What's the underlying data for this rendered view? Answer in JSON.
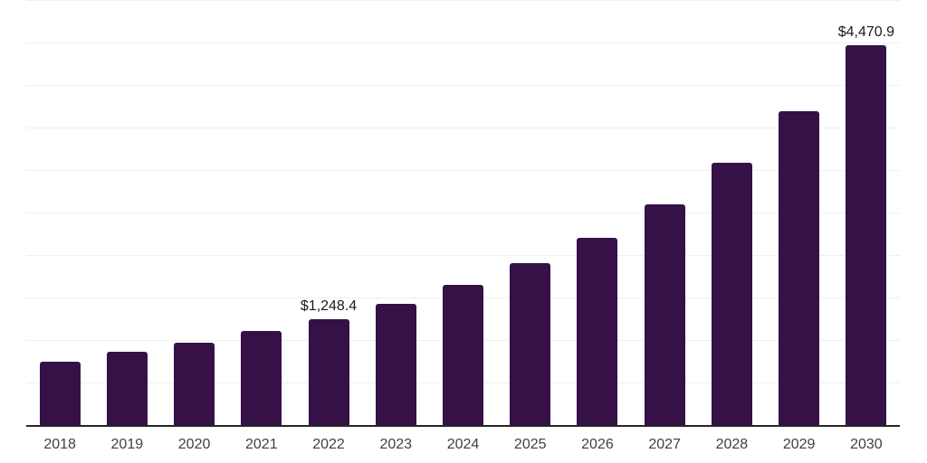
{
  "chart_data": {
    "type": "bar",
    "title": "",
    "xlabel": "",
    "ylabel": "",
    "categories": [
      "2018",
      "2019",
      "2020",
      "2021",
      "2022",
      "2023",
      "2024",
      "2025",
      "2026",
      "2027",
      "2028",
      "2029",
      "2030"
    ],
    "values": [
      745.0,
      860.0,
      970.0,
      1110.0,
      1248.4,
      1430.0,
      1645.0,
      1900.0,
      2200.0,
      2595.0,
      3080.0,
      3690.0,
      4470.9
    ],
    "value_labels": [
      "",
      "",
      "",
      "",
      "$1,248.4",
      "",
      "",
      "",
      "",
      "",
      "",
      "",
      "$4,470.9"
    ],
    "ylim": [
      0,
      5000
    ],
    "gridline_step": 500,
    "grid": true,
    "legend": false,
    "colors": {
      "bar": "#351148",
      "axis_line": "#262626",
      "gridline": "#f0f0f0",
      "value_label": "#1a1a1a",
      "tick_label": "#404040"
    }
  }
}
